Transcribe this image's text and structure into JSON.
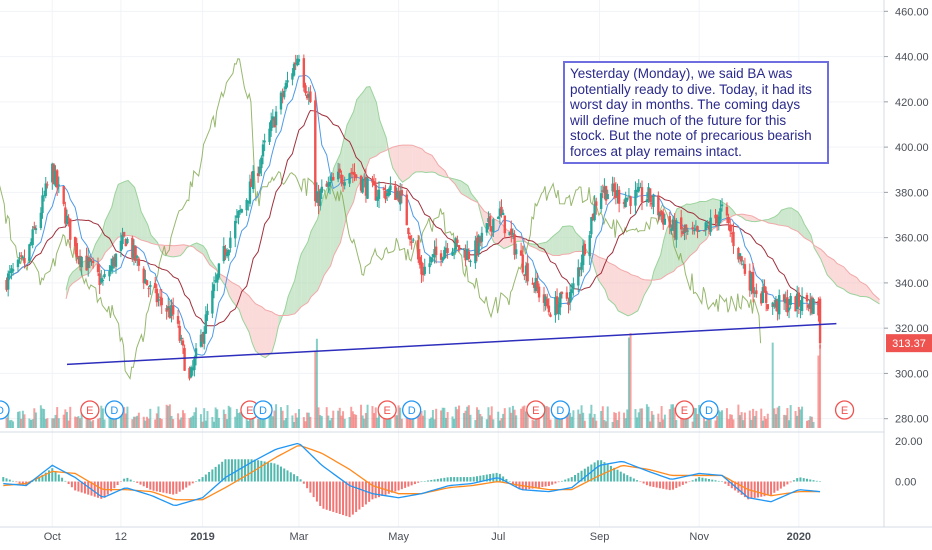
{
  "chart_data": {
    "type": "candlestick",
    "symbol": "BA",
    "last_price": "313.37",
    "price_axis": {
      "range": [
        275,
        465
      ],
      "ticks": [
        "460.00",
        "440.00",
        "420.00",
        "400.00",
        "380.00",
        "360.00",
        "340.00",
        "320.00",
        "300.00",
        "280.00"
      ]
    },
    "x_labels": [
      "Oct",
      "12",
      "2019",
      "Mar",
      "May",
      "Jul",
      "Sep",
      "Nov",
      "2020"
    ],
    "price_series": {
      "dates": [
        "2018-09-01",
        "2018-09-15",
        "2018-10-01",
        "2018-10-15",
        "2018-11-01",
        "2018-11-15",
        "2018-12-01",
        "2018-12-15",
        "2018-12-24",
        "2019-01-01",
        "2019-01-15",
        "2019-02-01",
        "2019-02-15",
        "2019-03-01",
        "2019-03-04",
        "2019-03-08",
        "2019-03-11",
        "2019-03-15",
        "2019-04-01",
        "2019-04-15",
        "2019-05-01",
        "2019-05-15",
        "2019-06-01",
        "2019-06-15",
        "2019-07-01",
        "2019-07-15",
        "2019-08-01",
        "2019-08-15",
        "2019-09-01",
        "2019-09-15",
        "2019-10-01",
        "2019-10-15",
        "2019-11-01",
        "2019-11-15",
        "2019-12-01",
        "2019-12-15",
        "2020-01-01",
        "2020-01-06",
        "2020-01-10",
        "2020-01-13",
        "2020-01-14"
      ],
      "close": [
        340,
        350,
        390,
        355,
        340,
        360,
        335,
        325,
        296,
        318,
        355,
        385,
        415,
        442,
        430,
        420,
        375,
        380,
        390,
        380,
        380,
        345,
        358,
        352,
        372,
        350,
        328,
        335,
        382,
        378,
        378,
        364,
        360,
        372,
        342,
        330,
        331,
        332,
        330,
        328,
        313.37
      ]
    },
    "resistance_line": [
      [
        "2018-10-10",
        304
      ],
      [
        "2020-01-24",
        322
      ]
    ],
    "volume_spike_dates": [
      "2019-03-11",
      "2019-09-20",
      "2019-12-15",
      "2020-01-14"
    ],
    "earnings_markers": [
      {
        "type": "D",
        "date": "2018-08-30"
      },
      {
        "type": "E",
        "date": "2018-10-24"
      },
      {
        "type": "D",
        "date": "2018-11-08"
      },
      {
        "type": "E",
        "date": "2019-01-30"
      },
      {
        "type": "D",
        "date": "2019-02-07"
      },
      {
        "type": "E",
        "date": "2019-04-24"
      },
      {
        "type": "D",
        "date": "2019-05-09"
      },
      {
        "type": "E",
        "date": "2019-07-24"
      },
      {
        "type": "D",
        "date": "2019-08-08"
      },
      {
        "type": "E",
        "date": "2019-10-23"
      },
      {
        "type": "D",
        "date": "2019-11-07"
      },
      {
        "type": "E",
        "date": "2020-01-29"
      }
    ],
    "macd": {
      "y_ticks": [
        "20.00",
        "0.00"
      ],
      "range": [
        -20,
        22
      ],
      "dates": [
        "2018-09-01",
        "2018-09-15",
        "2018-10-01",
        "2018-10-15",
        "2018-11-01",
        "2018-11-15",
        "2018-12-01",
        "2018-12-15",
        "2019-01-01",
        "2019-01-15",
        "2019-02-01",
        "2019-02-15",
        "2019-03-01",
        "2019-03-15",
        "2019-04-01",
        "2019-04-15",
        "2019-05-01",
        "2019-05-15",
        "2019-06-01",
        "2019-06-15",
        "2019-07-01",
        "2019-07-15",
        "2019-08-01",
        "2019-08-15",
        "2019-09-01",
        "2019-09-15",
        "2019-10-01",
        "2019-10-15",
        "2019-11-01",
        "2019-11-15",
        "2019-12-01",
        "2019-12-15",
        "2020-01-01",
        "2020-01-14"
      ],
      "macd_line": [
        -1,
        -2,
        8,
        2,
        -8,
        -3,
        -7,
        -12,
        -8,
        2,
        10,
        16,
        19,
        8,
        -2,
        -6,
        -8,
        -6,
        -2,
        -1,
        2,
        -4,
        -5,
        -3,
        8,
        10,
        5,
        1,
        4,
        3,
        -8,
        -10,
        -4,
        -5
      ],
      "signal_line": [
        -2,
        -1,
        5,
        4,
        -4,
        -4,
        -5,
        -9,
        -9,
        -3,
        5,
        12,
        18,
        14,
        6,
        -2,
        -6,
        -6,
        -3,
        -2,
        0,
        -2,
        -4,
        -4,
        3,
        8,
        6,
        3,
        3,
        3,
        -4,
        -7,
        -5,
        -5
      ]
    },
    "annotation": "Yesterday (Monday), we said BA was potentially ready to dive. Today, it had its worst day in months. The coming days will define much of the future for this stock. But the note of precarious bearish forces at play remains intact.",
    "colors": {
      "up": "#26a69a",
      "down": "#ef5350",
      "trendline": "#2e2ebd",
      "macd_line": "#2196f3",
      "signal_line": "#ff8a1e",
      "cloud_bull": "#a5d6a7",
      "cloud_bear": "#f8bbbb",
      "lagging_span": "#7ea64b",
      "base_line": "#a0303c",
      "price_label": "#ef5350",
      "annotation_border": "#6e6ee0",
      "annotation_text": "#2a2a8c"
    }
  }
}
